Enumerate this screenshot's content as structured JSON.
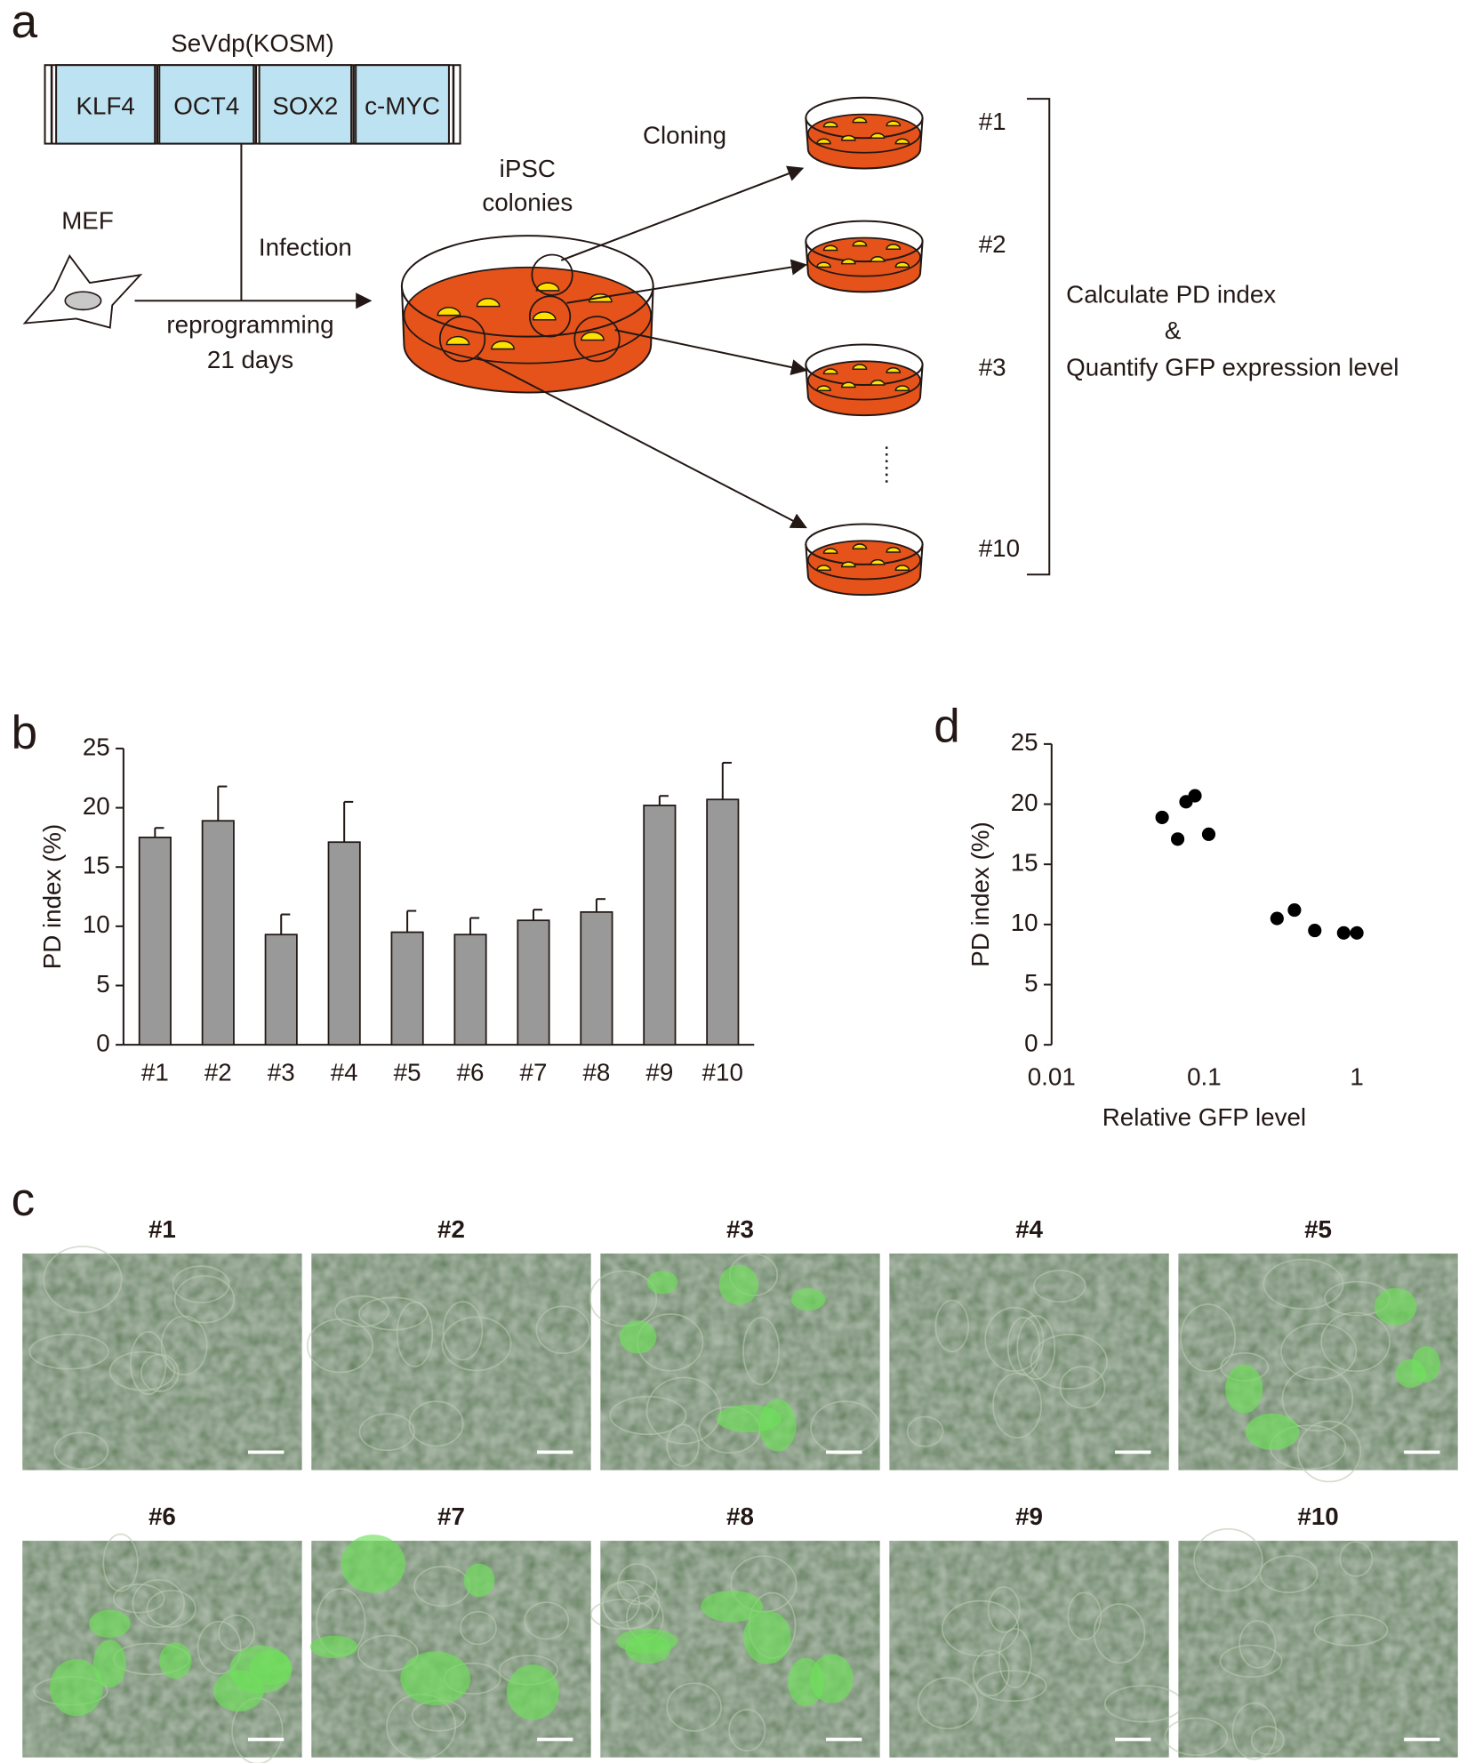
{
  "panel_labels": [
    "a",
    "b",
    "c",
    "d"
  ],
  "diagram": {
    "vector": {
      "title": "SeVdp(KOSM)",
      "genes": [
        "KLF4",
        "OCT4",
        "SOX2",
        "c-MYC"
      ]
    },
    "cell": "MEF",
    "step_top": "Infection",
    "step_bottom": [
      "reprogramming",
      "21 days"
    ],
    "colonies": [
      "iPSC",
      "colonies"
    ],
    "cloning": "Cloning",
    "clones": [
      "#1",
      "#2",
      "#3",
      "#10"
    ],
    "readout": [
      "Calculate PD index",
      "&",
      "Quantify GFP expression level"
    ]
  },
  "chart_data": [
    {
      "type": "bar",
      "ylabel": "PD index (%)",
      "categories": [
        "#1",
        "#2",
        "#3",
        "#4",
        "#5",
        "#6",
        "#7",
        "#8",
        "#9",
        "#10"
      ],
      "values": [
        17.5,
        18.9,
        9.3,
        17.1,
        9.5,
        9.3,
        10.5,
        11.2,
        20.2,
        20.7
      ],
      "errors": [
        0.8,
        2.9,
        1.7,
        3.4,
        1.8,
        1.4,
        0.9,
        1.1,
        0.8,
        3.1
      ],
      "color": "#999999",
      "ylim": [
        0,
        25
      ],
      "yticks": [
        0,
        5,
        10,
        15,
        20,
        25
      ]
    },
    {
      "type": "scatter",
      "xlabel": "Relative GFP level",
      "ylabel": "PD index (%)",
      "x": [
        0.053,
        0.067,
        0.076,
        0.087,
        0.107,
        0.3,
        0.39,
        0.53,
        0.82,
        1.0
      ],
      "values": [
        18.9,
        17.1,
        20.2,
        20.7,
        17.5,
        10.5,
        11.2,
        9.5,
        9.3,
        9.3
      ],
      "color": "#000000",
      "xscale": "log",
      "xlim": [
        0.01,
        1
      ],
      "xticks": [
        0.01,
        0.1,
        1
      ],
      "ylim": [
        0,
        25
      ],
      "yticks": [
        0,
        5,
        10,
        15,
        20,
        25
      ]
    }
  ],
  "micrographs": [
    "#1",
    "#2",
    "#3",
    "#4",
    "#5",
    "#6",
    "#7",
    "#8",
    "#9",
    "#10"
  ]
}
